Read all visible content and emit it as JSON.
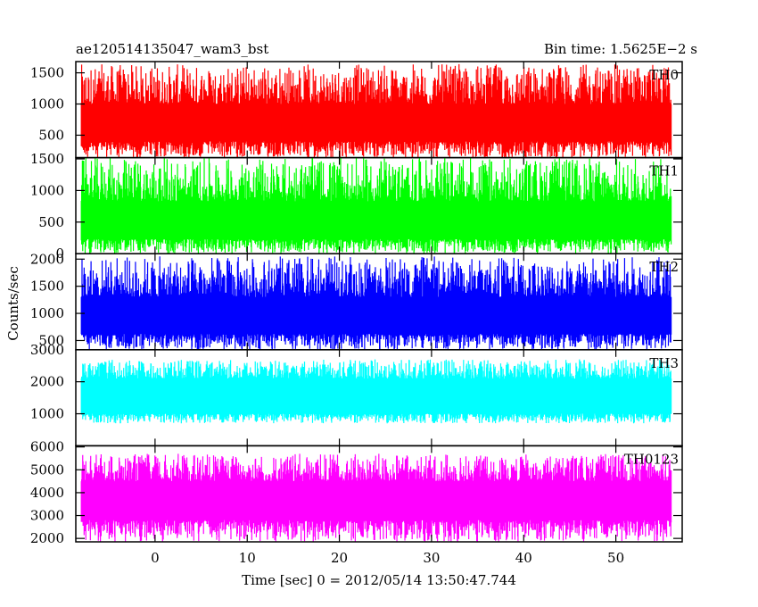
{
  "chart_data": {
    "type": "line",
    "title": "ae120514135047_wam3_bst",
    "subtitle": "Bin time: 1.5625E−2 s",
    "xlabel": "Time [sec] 0 = 2012/05/14 13:50:47.744",
    "ylabel": "Counts/sec",
    "xlim": [
      -8.6,
      57.2
    ],
    "x_ticks": [
      0,
      10,
      20,
      30,
      40,
      50
    ],
    "x_tick_labels": [
      "0",
      "10",
      "20",
      "30",
      "40",
      "50"
    ],
    "data_x_range": [
      -8.0,
      56.0
    ],
    "grid": false,
    "panels": [
      {
        "name": "TH0",
        "color": "#ff0000",
        "ylim": [
          140,
          1680
        ],
        "y_ticks": [
          500,
          1000,
          1500
        ],
        "y_tick_labels": [
          "500",
          "1000",
          "1500"
        ],
        "band_low": 400,
        "band_high": 1000,
        "spike_min": 130,
        "spike_max": 1640
      },
      {
        "name": "TH1",
        "color": "#00ff00",
        "ylim": [
          0,
          1520
        ],
        "y_ticks": [
          0,
          500,
          1000,
          1500
        ],
        "y_tick_labels": [
          "0",
          "500",
          "1000",
          "1500"
        ],
        "band_low": 230,
        "band_high": 830,
        "spike_min": 0,
        "spike_max": 1520
      },
      {
        "name": "TH2",
        "color": "#0000ff",
        "ylim": [
          330,
          2100
        ],
        "y_ticks": [
          500,
          1000,
          1500,
          2000
        ],
        "y_tick_labels": [
          "500",
          "1000",
          "1500",
          "2000"
        ],
        "band_low": 620,
        "band_high": 1300,
        "spike_min": 330,
        "spike_max": 2050
      },
      {
        "name": "TH3",
        "color": "#00ffff",
        "ylim": [
          0,
          3000
        ],
        "y_ticks": [
          1000,
          2000,
          3000
        ],
        "y_tick_labels": [
          "1000",
          "2000",
          "3000"
        ],
        "band_low": 1000,
        "band_high": 2100,
        "spike_min": 700,
        "spike_max": 2700
      },
      {
        "name": "TH0123",
        "color": "#ff00ff",
        "ylim": [
          1850,
          6050
        ],
        "y_ticks": [
          2000,
          3000,
          4000,
          5000,
          6000
        ],
        "y_tick_labels": [
          "2000",
          "3000",
          "4000",
          "5000",
          "6000"
        ],
        "band_low": 2800,
        "band_high": 4500,
        "spike_min": 1850,
        "spike_max": 5700
      }
    ]
  }
}
